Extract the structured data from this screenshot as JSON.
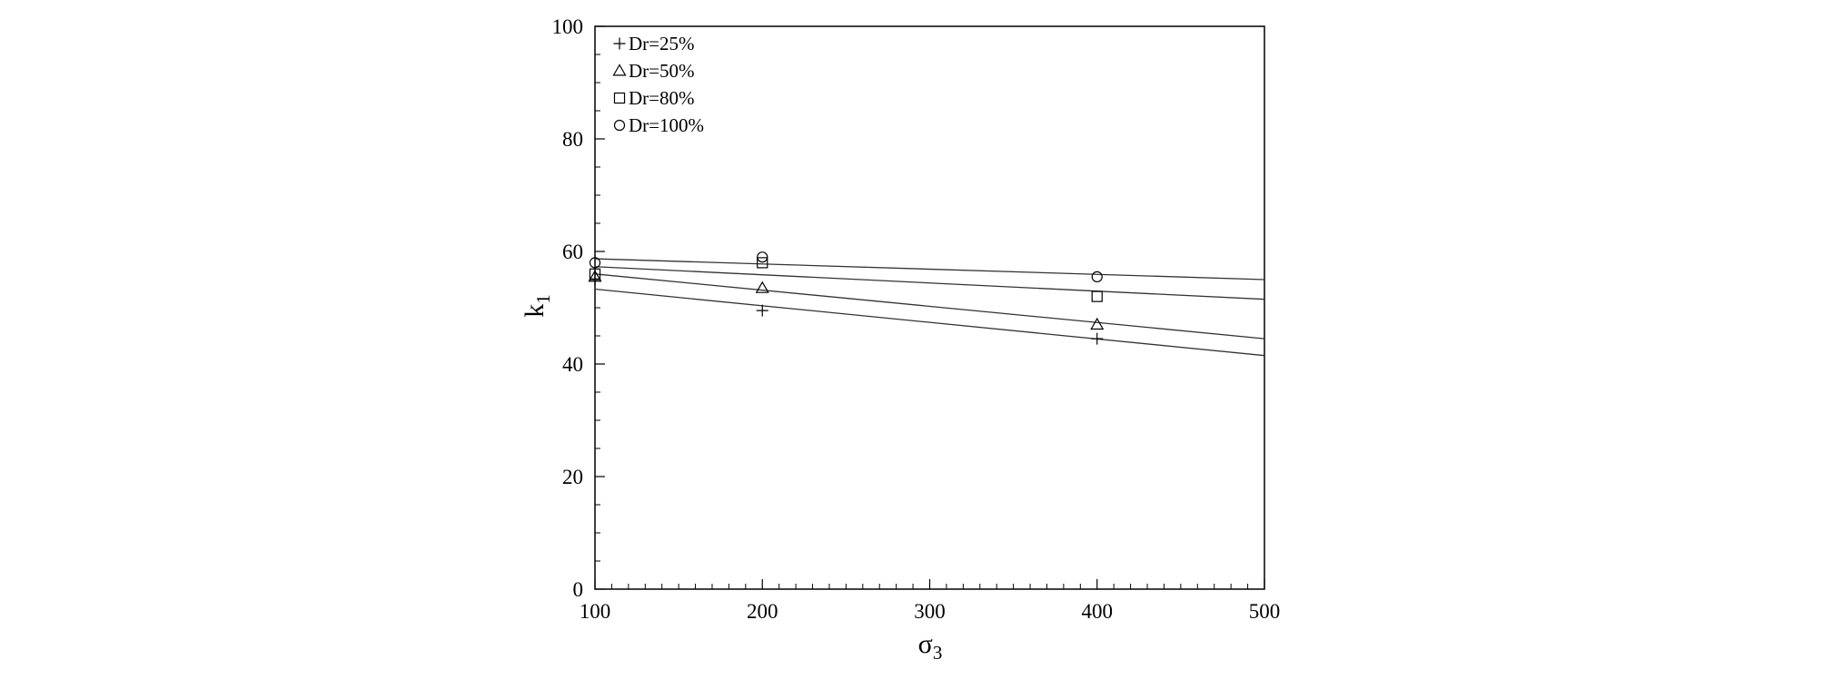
{
  "chart_data": {
    "type": "scatter",
    "title": "",
    "xlabel": {
      "main": "σ",
      "sub": "3"
    },
    "ylabel": {
      "main": "k",
      "sub": "1"
    },
    "xlim": [
      100,
      500
    ],
    "ylim": [
      0,
      100
    ],
    "x_ticks": [
      100,
      200,
      300,
      400,
      500
    ],
    "y_ticks": [
      0,
      20,
      40,
      60,
      80,
      100
    ],
    "x_minor_step": 10,
    "y_minor_step": 5,
    "grid": false,
    "legend_position": "top-left",
    "series": [
      {
        "name": "Dr=25%",
        "marker": "plus",
        "x": [
          100,
          200,
          400
        ],
        "y": [
          55.0,
          49.5,
          44.5
        ],
        "fit": {
          "x": [
            100,
            500
          ],
          "y": [
            53.3,
            41.5
          ]
        }
      },
      {
        "name": "Dr=50%",
        "marker": "triangle",
        "x": [
          100,
          200,
          400
        ],
        "y": [
          55.5,
          53.5,
          47.0
        ],
        "fit": {
          "x": [
            100,
            500
          ],
          "y": [
            56.0,
            44.5
          ]
        }
      },
      {
        "name": "Dr=80%",
        "marker": "square",
        "x": [
          100,
          200,
          400
        ],
        "y": [
          56.0,
          58.0,
          52.0
        ],
        "fit": {
          "x": [
            100,
            500
          ],
          "y": [
            57.3,
            51.5
          ]
        }
      },
      {
        "name": "Dr=100%",
        "marker": "circle",
        "x": [
          100,
          200,
          400
        ],
        "y": [
          58.0,
          59.0,
          55.5
        ],
        "fit": {
          "x": [
            100,
            500
          ],
          "y": [
            58.7,
            55.0
          ]
        }
      }
    ]
  }
}
